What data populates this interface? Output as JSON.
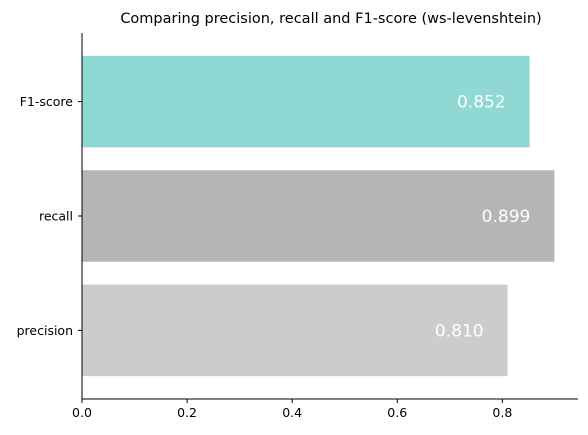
{
  "chart_data": {
    "type": "bar",
    "orientation": "horizontal",
    "title": "Comparing precision, recall and F1-score (ws-levenshtein)",
    "xlabel": "",
    "ylabel": "",
    "categories": [
      "precision",
      "recall",
      "F1-score"
    ],
    "values": [
      0.81,
      0.899,
      0.852
    ],
    "data_labels": [
      "0.810",
      "0.899",
      "0.852"
    ],
    "colors": [
      "#cccccc",
      "#b5b5b5",
      "#8fd8d3"
    ],
    "xlim": [
      0,
      0.944
    ],
    "x_ticks": [
      0.0,
      0.2,
      0.4,
      0.6,
      0.8
    ],
    "x_tick_labels": [
      "0.0",
      "0.2",
      "0.4",
      "0.6",
      "0.8"
    ],
    "grid": false,
    "legend": "none"
  }
}
